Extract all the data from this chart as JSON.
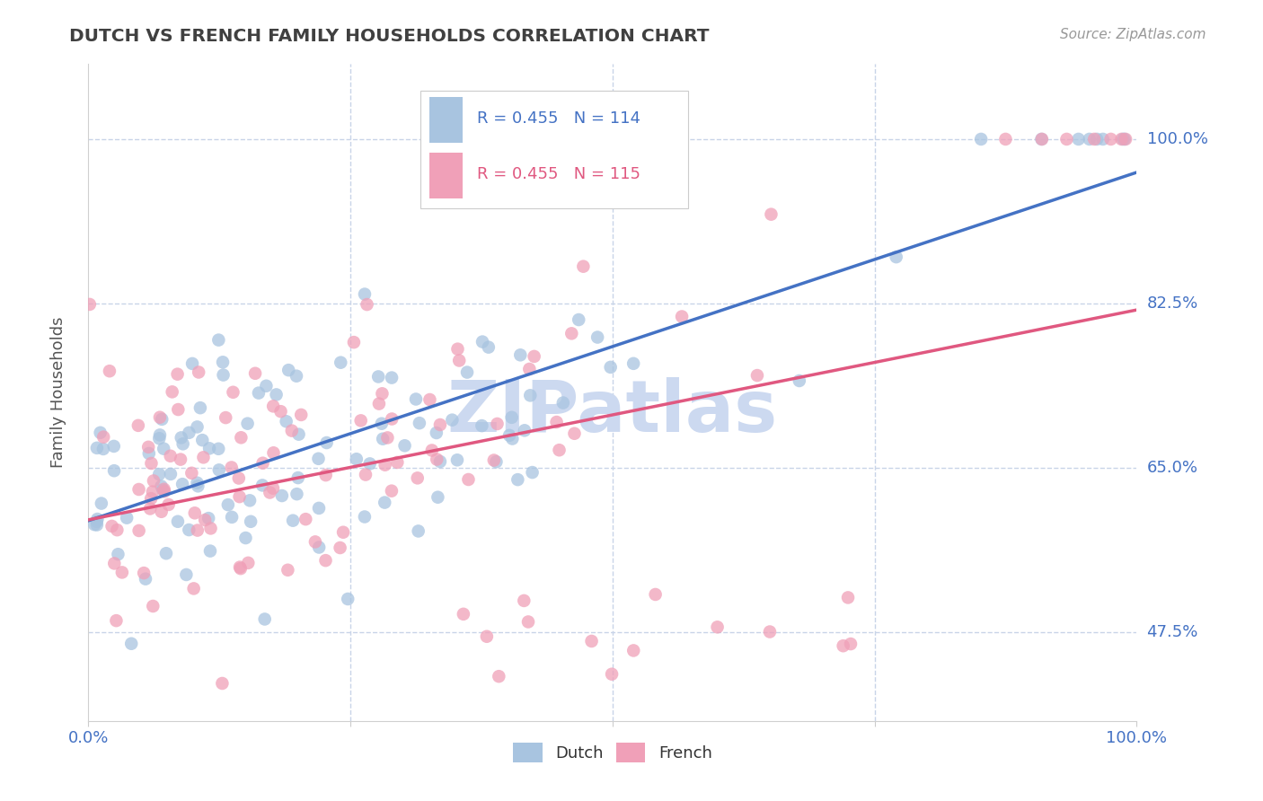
{
  "title": "DUTCH VS FRENCH FAMILY HOUSEHOLDS CORRELATION CHART",
  "source": "Source: ZipAtlas.com",
  "ylabel": "Family Households",
  "ytick_values": [
    1.0,
    0.825,
    0.65,
    0.475
  ],
  "ytick_labels": [
    "100.0%",
    "82.5%",
    "65.0%",
    "47.5%"
  ],
  "xlim": [
    0.0,
    1.0
  ],
  "ylim": [
    0.38,
    1.08
  ],
  "legend_dutch_R": "0.455",
  "legend_dutch_N": "114",
  "legend_french_R": "0.455",
  "legend_french_N": "115",
  "dutch_color": "#a8c4e0",
  "french_color": "#f0a0b8",
  "dutch_line_color": "#4472c4",
  "french_line_color": "#e05880",
  "watermark_text": "ZIPatlas",
  "watermark_color": "#ccd9f0",
  "title_color": "#404040",
  "axis_label_color": "#4472c4",
  "background_color": "#ffffff",
  "grid_color": "#c8d4e8",
  "dutch_seed": 7,
  "french_seed": 13,
  "dutch_n": 114,
  "french_n": 115,
  "dutch_slope": 0.22,
  "dutch_intercept": 0.635,
  "dutch_noise": 0.065,
  "french_slope": 0.3,
  "french_intercept": 0.595,
  "french_noise": 0.075
}
